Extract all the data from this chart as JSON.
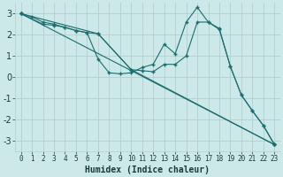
{
  "xlabel": "Humidex (Indice chaleur)",
  "background_color": "#cce8e8",
  "grid_color": "#b0d0d0",
  "line_color": "#1a6e6e",
  "xlim": [
    -0.5,
    23.5
  ],
  "ylim": [
    -3.5,
    3.5
  ],
  "yticks": [
    -3,
    -2,
    -1,
    0,
    1,
    2,
    3
  ],
  "xticks": [
    0,
    1,
    2,
    3,
    4,
    5,
    6,
    7,
    8,
    9,
    10,
    11,
    12,
    13,
    14,
    15,
    16,
    17,
    18,
    19,
    20,
    21,
    22,
    23
  ],
  "lines": [
    {
      "x": [
        0,
        1,
        2,
        3,
        4,
        5,
        6,
        7,
        8,
        9,
        10,
        11,
        12,
        13,
        14,
        15,
        16,
        17,
        18,
        19,
        20,
        21,
        22,
        23
      ],
      "y": [
        3,
        2.85,
        2.6,
        2.5,
        2.35,
        2.2,
        2.1,
        0.85,
        0.2,
        0.15,
        0.2,
        0.45,
        0.6,
        1.55,
        1.1,
        2.6,
        3.3,
        2.6,
        2.25,
        0.5,
        -0.85,
        -1.6,
        -2.3,
        -3.2
      ]
    },
    {
      "x": [
        0,
        2,
        3,
        4,
        5,
        6,
        7,
        10,
        11,
        12,
        13,
        14,
        15,
        16,
        17,
        18,
        19,
        20,
        21,
        22,
        23
      ],
      "y": [
        3,
        2.5,
        2.45,
        2.35,
        2.2,
        2.1,
        2.05,
        0.35,
        0.3,
        0.25,
        0.6,
        0.6,
        1.0,
        2.6,
        2.6,
        2.3,
        0.5,
        -0.85,
        -1.6,
        -2.3,
        -3.2
      ]
    },
    {
      "x": [
        0,
        7,
        10,
        23
      ],
      "y": [
        3,
        2.05,
        0.35,
        -3.2
      ]
    },
    {
      "x": [
        0,
        23
      ],
      "y": [
        3,
        -3.2
      ]
    }
  ]
}
